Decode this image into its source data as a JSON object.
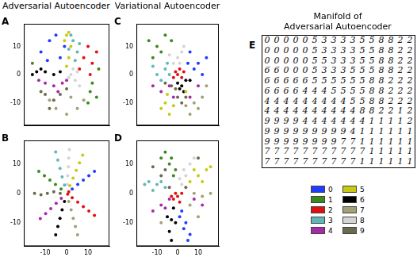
{
  "chart_data": [
    {
      "type": "scatter",
      "annotation": "A",
      "title": "Adversarial Autoencoder",
      "xlim": [
        -20,
        20
      ],
      "ylim": [
        -18,
        18
      ],
      "xticks": [
        -10,
        0,
        10
      ],
      "yticks": [
        -10,
        0,
        10
      ],
      "grid": false,
      "tick_labels": "y",
      "legend": "bottom right",
      "series": [
        {
          "name": "0",
          "color": "#1f3dff",
          "x": [
            -12,
            -8,
            -5,
            -3,
            -9,
            -1
          ],
          "y": [
            8,
            12,
            14,
            6,
            5,
            10
          ]
        },
        {
          "name": "1",
          "color": "#3b8a1e",
          "x": [
            12,
            14,
            10,
            15,
            -16,
            11
          ],
          "y": [
            -3,
            -8,
            -10,
            2,
            4,
            -6
          ]
        },
        {
          "name": "2",
          "color": "#e01010",
          "x": [
            8,
            12,
            10,
            14,
            6,
            11
          ],
          "y": [
            6,
            4,
            10,
            8,
            2,
            0
          ]
        },
        {
          "name": "3",
          "color": "#5fb8b8",
          "x": [
            3,
            5,
            2,
            6,
            4,
            1
          ],
          "y": [
            12,
            8,
            14,
            11,
            5,
            9
          ]
        },
        {
          "name": "4",
          "color": "#a82aa8",
          "x": [
            -10,
            -6,
            -2,
            -13,
            -4,
            0
          ],
          "y": [
            -3,
            -4,
            -3,
            -2,
            -6,
            -2
          ]
        },
        {
          "name": "5",
          "color": "#c9c812",
          "x": [
            0,
            1,
            -1,
            2,
            0,
            1
          ],
          "y": [
            14,
            6,
            12,
            10,
            3,
            15
          ]
        },
        {
          "name": "6",
          "color": "#000000",
          "x": [
            -14,
            -10,
            -6,
            -16,
            -12,
            -3
          ],
          "y": [
            1,
            1,
            0,
            0,
            2,
            1
          ]
        },
        {
          "name": "7",
          "color": "#a3a176",
          "x": [
            -5,
            0,
            5,
            8,
            -8,
            2
          ],
          "y": [
            -12,
            -14,
            -12,
            -9,
            -9,
            -8
          ]
        },
        {
          "name": "8",
          "color": "#d4d4d4",
          "x": [
            2,
            4,
            3,
            6,
            1,
            5
          ],
          "y": [
            0,
            -2,
            2,
            -4,
            -1,
            1
          ]
        },
        {
          "name": "9",
          "color": "#6b6a4c",
          "x": [
            -10,
            -6,
            -3,
            -12,
            0,
            -8
          ],
          "y": [
            -7,
            -9,
            -7,
            -6,
            -5,
            -12
          ]
        }
      ]
    },
    {
      "type": "scatter",
      "annotation": "B",
      "xlim": [
        -20,
        20
      ],
      "ylim": [
        -18,
        18
      ],
      "xticks": [
        -10,
        0,
        10
      ],
      "yticks": [
        -10,
        0,
        10
      ],
      "grid": false,
      "tick_labels": true,
      "series": [
        {
          "name": "0",
          "color": "#1f3dff",
          "x": [
            2.6,
            5.2,
            7.8,
            10.4,
            13
          ],
          "y": [
            1.5,
            3,
            4.5,
            6,
            7.5
          ]
        },
        {
          "name": "1",
          "color": "#3b8a1e",
          "x": [
            -2.6,
            -5.2,
            -7.8,
            -10.4,
            -13
          ],
          "y": [
            1.5,
            3,
            4.5,
            6,
            7.5
          ]
        },
        {
          "name": "2",
          "color": "#e01010",
          "x": [
            0.5,
            1,
            2.6,
            5.2,
            7.8,
            10.4,
            13
          ],
          "y": [
            -0.3,
            0.5,
            -1.5,
            -3,
            -4.5,
            -6,
            -7.5
          ]
        },
        {
          "name": "3",
          "color": "#5fb8b8",
          "x": [
            -1,
            -2.1,
            -3.1,
            -4.1,
            -5.1
          ],
          "y": [
            2.8,
            5.6,
            8.5,
            11.3,
            14.1
          ]
        },
        {
          "name": "4",
          "color": "#a82aa8",
          "x": [
            -2.5,
            -4.9,
            -7.4,
            -9.8,
            -12.3
          ],
          "y": [
            -1.7,
            -3.4,
            -5.2,
            -6.9,
            -8.6
          ]
        },
        {
          "name": "5",
          "color": "#c9c812",
          "x": [
            1.5,
            3,
            4.5,
            6,
            7.5
          ],
          "y": [
            2.6,
            5.2,
            7.8,
            10.4,
            13
          ]
        },
        {
          "name": "6",
          "color": "#000000",
          "x": [
            -1,
            -2.1,
            -3.1,
            -4.1,
            -5.1
          ],
          "y": [
            -2.8,
            -5.6,
            -8.5,
            -11.3,
            -14.1
          ]
        },
        {
          "name": "7",
          "color": "#a3a176",
          "x": [
            1,
            2.1,
            3.1,
            4.1,
            5.1
          ],
          "y": [
            -2.8,
            -5.6,
            -8.5,
            -11.3,
            -14.1
          ]
        },
        {
          "name": "8",
          "color": "#d4d4d4",
          "x": [
            0.3,
            0.5,
            0.8,
            1,
            1.3
          ],
          "y": [
            3,
            6,
            9,
            12,
            14.9
          ]
        },
        {
          "name": "9",
          "color": "#6b6a4c",
          "x": [
            -3,
            -6,
            -9,
            -12,
            -15
          ],
          "y": [
            0,
            0.5,
            0,
            -0.5,
            0
          ]
        }
      ]
    },
    {
      "type": "scatter",
      "annotation": "C",
      "title": "Variational Autoencoder",
      "xlim": [
        -20,
        20
      ],
      "ylim": [
        -18,
        18
      ],
      "xticks": [
        -10,
        0,
        10
      ],
      "yticks": [
        -10,
        0,
        10
      ],
      "grid": false,
      "tick_labels": "y",
      "series": [
        {
          "name": "0",
          "color": "#1f3dff",
          "x": [
            6,
            10,
            12,
            8,
            14,
            5
          ],
          "y": [
            8,
            4,
            0,
            2,
            6,
            4
          ]
        },
        {
          "name": "1",
          "color": "#3b8a1e",
          "x": [
            -10,
            -6,
            -12,
            -3,
            -8,
            -14
          ],
          "y": [
            10,
            14,
            6,
            12,
            8,
            12
          ]
        },
        {
          "name": "2",
          "color": "#e01010",
          "x": [
            0,
            2,
            -1,
            1,
            3,
            -2
          ],
          "y": [
            0,
            -1,
            1,
            2,
            1,
            -1
          ]
        },
        {
          "name": "3",
          "color": "#5fb8b8",
          "x": [
            -6,
            -10,
            -4,
            -8,
            -12,
            -5
          ],
          "y": [
            2,
            0,
            0,
            -2,
            3,
            4
          ]
        },
        {
          "name": "4",
          "color": "#a82aa8",
          "x": [
            -8,
            -4,
            -12,
            6,
            -2,
            10
          ],
          "y": [
            -6,
            -4,
            -4,
            -8,
            -8,
            -4
          ]
        },
        {
          "name": "5",
          "color": "#c9c812",
          "x": [
            -6,
            -4,
            -8,
            -2,
            4,
            -5
          ],
          "y": [
            -10,
            -14,
            -12,
            -11,
            -6,
            -7
          ]
        },
        {
          "name": "6",
          "color": "#000000",
          "x": [
            2,
            4,
            0,
            6,
            3,
            1
          ],
          "y": [
            -4,
            -2,
            -3,
            -2,
            -6,
            -5
          ]
        },
        {
          "name": "7",
          "color": "#a3a176",
          "x": [
            8,
            12,
            6,
            10,
            14,
            4
          ],
          "y": [
            -10,
            -8,
            -14,
            -12,
            -4,
            -11
          ]
        },
        {
          "name": "8",
          "color": "#d4d4d4",
          "x": [
            -2,
            0,
            2,
            -4,
            1,
            3
          ],
          "y": [
            4,
            6,
            8,
            7,
            4,
            10
          ]
        },
        {
          "name": "9",
          "color": "#6b6a4c",
          "x": [
            -3,
            0,
            2,
            -1,
            4,
            -6
          ],
          "y": [
            -4,
            -8,
            -10,
            -5,
            -8,
            -3
          ]
        }
      ]
    },
    {
      "type": "scatter",
      "annotation": "D",
      "xlim": [
        -20,
        20
      ],
      "ylim": [
        -18,
        18
      ],
      "xticks": [
        -10,
        0,
        10
      ],
      "yticks": [
        -10,
        0,
        10
      ],
      "grid": false,
      "tick_labels": true,
      "series": [
        {
          "name": "0",
          "color": "#1f3dff",
          "x": [
            2,
            4,
            6,
            3,
            1,
            5
          ],
          "y": [
            -6,
            -10,
            -14,
            -12,
            -8,
            -16
          ]
        },
        {
          "name": "1",
          "color": "#3b8a1e",
          "x": [
            -2,
            -4,
            -6,
            -3,
            -8,
            -1
          ],
          "y": [
            6,
            10,
            14,
            12,
            12,
            8
          ]
        },
        {
          "name": "2",
          "color": "#e01010",
          "x": [
            0,
            -2,
            1,
            -1,
            2,
            -3
          ],
          "y": [
            -1,
            -2,
            -3,
            0,
            0,
            -1
          ]
        },
        {
          "name": "3",
          "color": "#5fb8b8",
          "x": [
            -6,
            -10,
            -14,
            -8,
            -12,
            -16
          ],
          "y": [
            2,
            3,
            4,
            4,
            1,
            3
          ]
        },
        {
          "name": "4",
          "color": "#a82aa8",
          "x": [
            -4,
            -8,
            -12,
            8,
            12,
            -6
          ],
          "y": [
            -2,
            -4,
            -6,
            -2,
            -4,
            -5
          ]
        },
        {
          "name": "5",
          "color": "#c9c812",
          "x": [
            6,
            10,
            14,
            8,
            12,
            16
          ],
          "y": [
            4,
            6,
            8,
            8,
            4,
            9
          ]
        },
        {
          "name": "6",
          "color": "#000000",
          "x": [
            -2,
            -3,
            -4,
            -1,
            -5,
            -3
          ],
          "y": [
            -5,
            -9,
            -13,
            -10,
            -8,
            -16
          ]
        },
        {
          "name": "7",
          "color": "#a3a176",
          "x": [
            8,
            12,
            16,
            -8,
            10,
            6
          ],
          "y": [
            0,
            -1,
            0,
            -10,
            -8,
            -4
          ]
        },
        {
          "name": "8",
          "color": "#d4d4d4",
          "x": [
            2,
            4,
            6,
            3,
            8,
            1
          ],
          "y": [
            3,
            6,
            10,
            8,
            12,
            5
          ]
        },
        {
          "name": "9",
          "color": "#6b6a4c",
          "x": [
            -4,
            -8,
            -12,
            4,
            10,
            -6
          ],
          "y": [
            2,
            6,
            9,
            2,
            12,
            8
          ]
        }
      ]
    }
  ],
  "manifold": {
    "annotation": "E",
    "title": [
      "Manifold of",
      "Adversarial Autoencoder"
    ],
    "rows": [
      "0000053333558822",
      "0000053333558822",
      "0000055333558822",
      "6600053335558822",
      "6666655555588222",
      "6666444555588222",
      "4444444445588222",
      "4444444444882212",
      "9999444444411112",
      "9999999994111111",
      "9999999977111111",
      "7777777777711111",
      "7777777777111111"
    ]
  }
}
